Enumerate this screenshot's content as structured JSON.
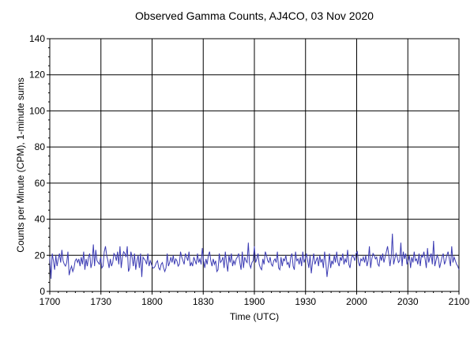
{
  "chart_data": {
    "type": "line",
    "title": "Observed Gamma Counts, AJ4CO, 03 Nov 2020",
    "xlabel": "Time (UTC)",
    "ylabel": "Counts per Minute (CPM), 1-minute sums",
    "xlim": [
      "1700",
      "2100"
    ],
    "ylim": [
      0,
      140
    ],
    "x_ticks": [
      "1700",
      "1730",
      "1800",
      "1830",
      "1900",
      "1930",
      "2000",
      "2030",
      "2100"
    ],
    "y_ticks": [
      0,
      20,
      40,
      60,
      80,
      100,
      120,
      140
    ],
    "grid": true,
    "colors": {
      "series": "#3b3bb3",
      "grid": "#000000"
    },
    "series": [
      {
        "values": [
          19,
          7,
          21,
          17,
          12,
          20,
          14,
          18,
          21,
          16,
          23,
          17,
          15,
          14,
          16,
          22,
          9,
          12,
          14,
          11,
          13,
          17,
          18,
          16,
          18,
          14,
          19,
          15,
          22,
          12,
          18,
          14,
          19,
          21,
          13,
          16,
          26,
          14,
          23,
          17,
          16,
          15,
          19,
          13,
          14,
          22,
          25,
          20,
          17,
          13,
          18,
          14,
          16,
          21,
          20,
          17,
          22,
          15,
          25,
          13,
          19,
          22,
          21,
          19,
          25,
          11,
          13,
          22,
          19,
          14,
          21,
          12,
          17,
          20,
          13,
          21,
          8,
          19,
          18,
          17,
          15,
          21,
          14,
          17,
          15,
          13,
          13,
          14,
          16,
          17,
          13,
          12,
          15,
          16,
          13,
          11,
          13,
          21,
          14,
          16,
          19,
          16,
          20,
          15,
          18,
          17,
          14,
          15,
          22,
          19,
          17,
          15,
          21,
          19,
          17,
          22,
          14,
          16,
          14,
          19,
          17,
          15,
          21,
          16,
          18,
          15,
          24,
          17,
          13,
          18,
          15,
          20,
          22,
          17,
          14,
          18,
          15,
          17,
          11,
          12,
          21,
          16,
          17,
          19,
          13,
          22,
          16,
          11,
          20,
          16,
          21,
          14,
          17,
          15,
          18,
          19,
          21,
          16,
          12,
          22,
          13,
          19,
          17,
          16,
          27,
          15,
          13,
          16,
          17,
          25,
          16,
          18,
          21,
          15,
          13,
          12,
          18,
          15,
          22,
          20,
          17,
          16,
          19,
          15,
          14,
          17,
          18,
          16,
          22,
          13,
          12,
          19,
          14,
          18,
          17,
          20,
          15,
          16,
          13,
          19,
          21,
          14,
          12,
          22,
          17,
          18,
          15,
          19,
          14,
          22,
          16,
          18,
          21,
          17,
          13,
          20,
          10,
          16,
          21,
          15,
          17,
          19,
          14,
          20,
          16,
          18,
          13,
          22,
          16,
          8,
          14,
          21,
          13,
          17,
          15,
          20,
          16,
          22,
          16,
          14,
          19,
          17,
          21,
          15,
          18,
          16,
          23,
          15,
          13,
          18,
          20,
          19,
          17,
          21,
          22,
          16,
          14,
          18,
          17,
          19,
          16,
          20,
          14,
          17,
          25,
          13,
          18,
          21,
          20,
          18,
          19,
          15,
          14,
          20,
          17,
          21,
          16,
          19,
          22,
          25,
          20,
          14,
          19,
          32,
          15,
          18,
          21,
          19,
          16,
          17,
          27,
          14,
          22,
          18,
          21,
          15,
          17,
          20,
          13,
          19,
          16,
          22,
          17,
          18,
          15,
          21,
          14,
          20,
          19,
          22,
          18,
          13,
          24,
          16,
          19,
          21,
          15,
          28,
          14,
          17,
          20,
          18,
          13,
          16,
          19,
          21,
          15,
          17,
          20,
          22,
          18,
          14,
          25,
          16,
          19,
          17,
          15,
          14,
          12
        ]
      }
    ]
  }
}
